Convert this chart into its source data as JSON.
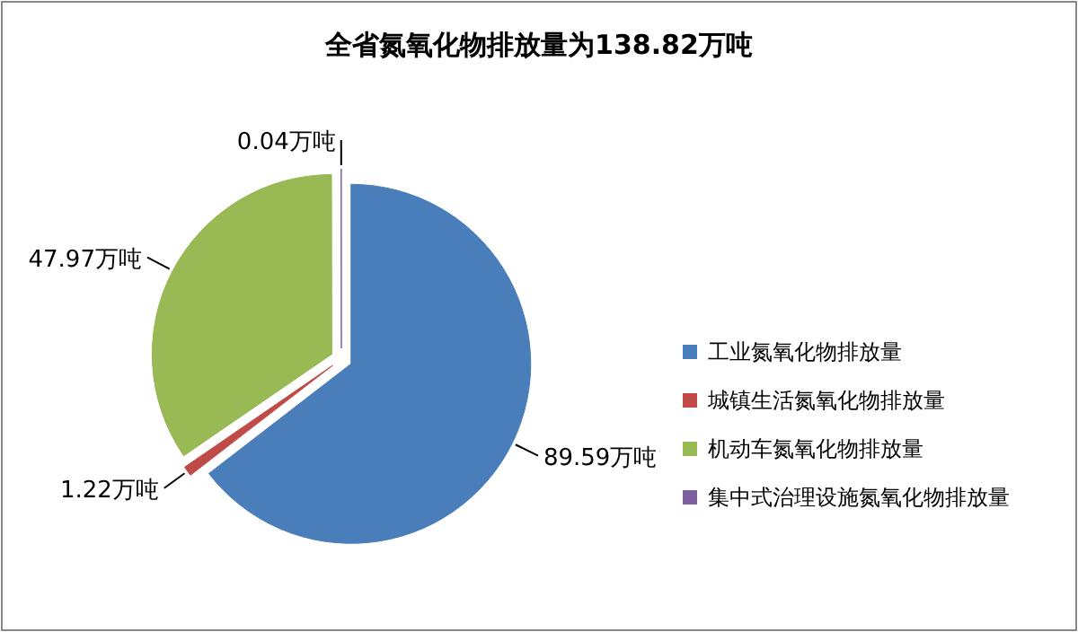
{
  "chart_data": {
    "type": "pie",
    "title": "全省氮氧化物排放量为138.82万吨",
    "categories": [
      "工业氮氧化物排放量",
      "城镇生活氮氧化物排放量",
      "机动车氮氧化物排放量",
      "集中式治理设施氮氧化物排放量"
    ],
    "values": [
      89.59,
      1.22,
      47.97,
      0.04
    ],
    "colors": [
      "#4a7ebb",
      "#be4b48",
      "#98b954",
      "#7d60a0"
    ],
    "value_labels": [
      "89.59万吨",
      "1.22万吨",
      "47.97万吨",
      "0.04万吨"
    ],
    "legend": "right"
  }
}
